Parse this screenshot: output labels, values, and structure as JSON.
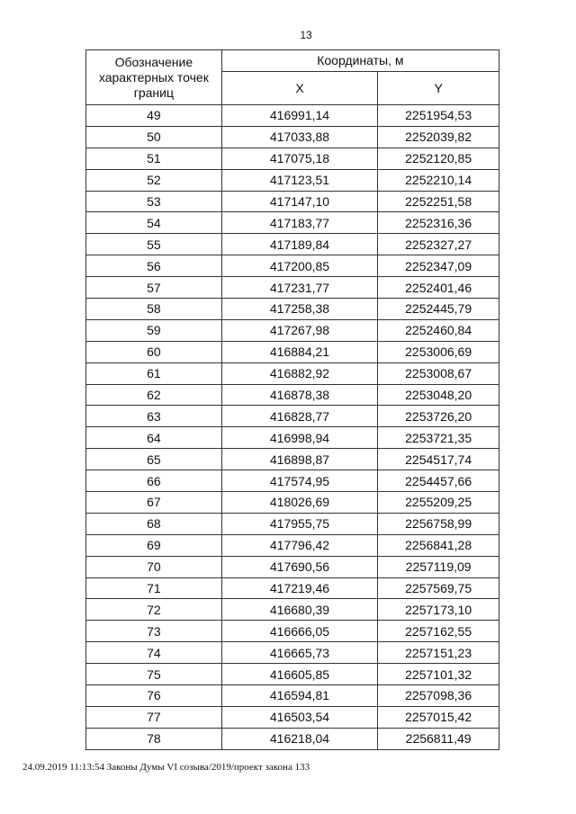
{
  "page_number": "13",
  "table": {
    "header": {
      "point_label": "Обозначение характерных точек границ",
      "coords_label": "Координаты, м",
      "x_label": "X",
      "y_label": "Y"
    },
    "rows": [
      [
        "49",
        "416991,14",
        "2251954,53"
      ],
      [
        "50",
        "417033,88",
        "2252039,82"
      ],
      [
        "51",
        "417075,18",
        "2252120,85"
      ],
      [
        "52",
        "417123,51",
        "2252210,14"
      ],
      [
        "53",
        "417147,10",
        "2252251,58"
      ],
      [
        "54",
        "417183,77",
        "2252316,36"
      ],
      [
        "55",
        "417189,84",
        "2252327,27"
      ],
      [
        "56",
        "417200,85",
        "2252347,09"
      ],
      [
        "57",
        "417231,77",
        "2252401,46"
      ],
      [
        "58",
        "417258,38",
        "2252445,79"
      ],
      [
        "59",
        "417267,98",
        "2252460,84"
      ],
      [
        "60",
        "416884,21",
        "2253006,69"
      ],
      [
        "61",
        "416882,92",
        "2253008,67"
      ],
      [
        "62",
        "416878,38",
        "2253048,20"
      ],
      [
        "63",
        "416828,77",
        "2253726,20"
      ],
      [
        "64",
        "416998,94",
        "2253721,35"
      ],
      [
        "65",
        "416898,87",
        "2254517,74"
      ],
      [
        "66",
        "417574,95",
        "2254457,66"
      ],
      [
        "67",
        "418026,69",
        "2255209,25"
      ],
      [
        "68",
        "417955,75",
        "2256758,99"
      ],
      [
        "69",
        "417796,42",
        "2256841,28"
      ],
      [
        "70",
        "417690,56",
        "2257119,09"
      ],
      [
        "71",
        "417219,46",
        "2257569,75"
      ],
      [
        "72",
        "416680,39",
        "2257173,10"
      ],
      [
        "73",
        "416666,05",
        "2257162,55"
      ],
      [
        "74",
        "416665,73",
        "2257151,23"
      ],
      [
        "75",
        "416605,85",
        "2257101,32"
      ],
      [
        "76",
        "416594,81",
        "2257098,36"
      ],
      [
        "77",
        "416503,54",
        "2257015,42"
      ],
      [
        "78",
        "416218,04",
        "2256811,49"
      ]
    ]
  },
  "footer": "24.09.2019 11:13:54 Законы Думы VI созыва/2019/проект закона 133"
}
